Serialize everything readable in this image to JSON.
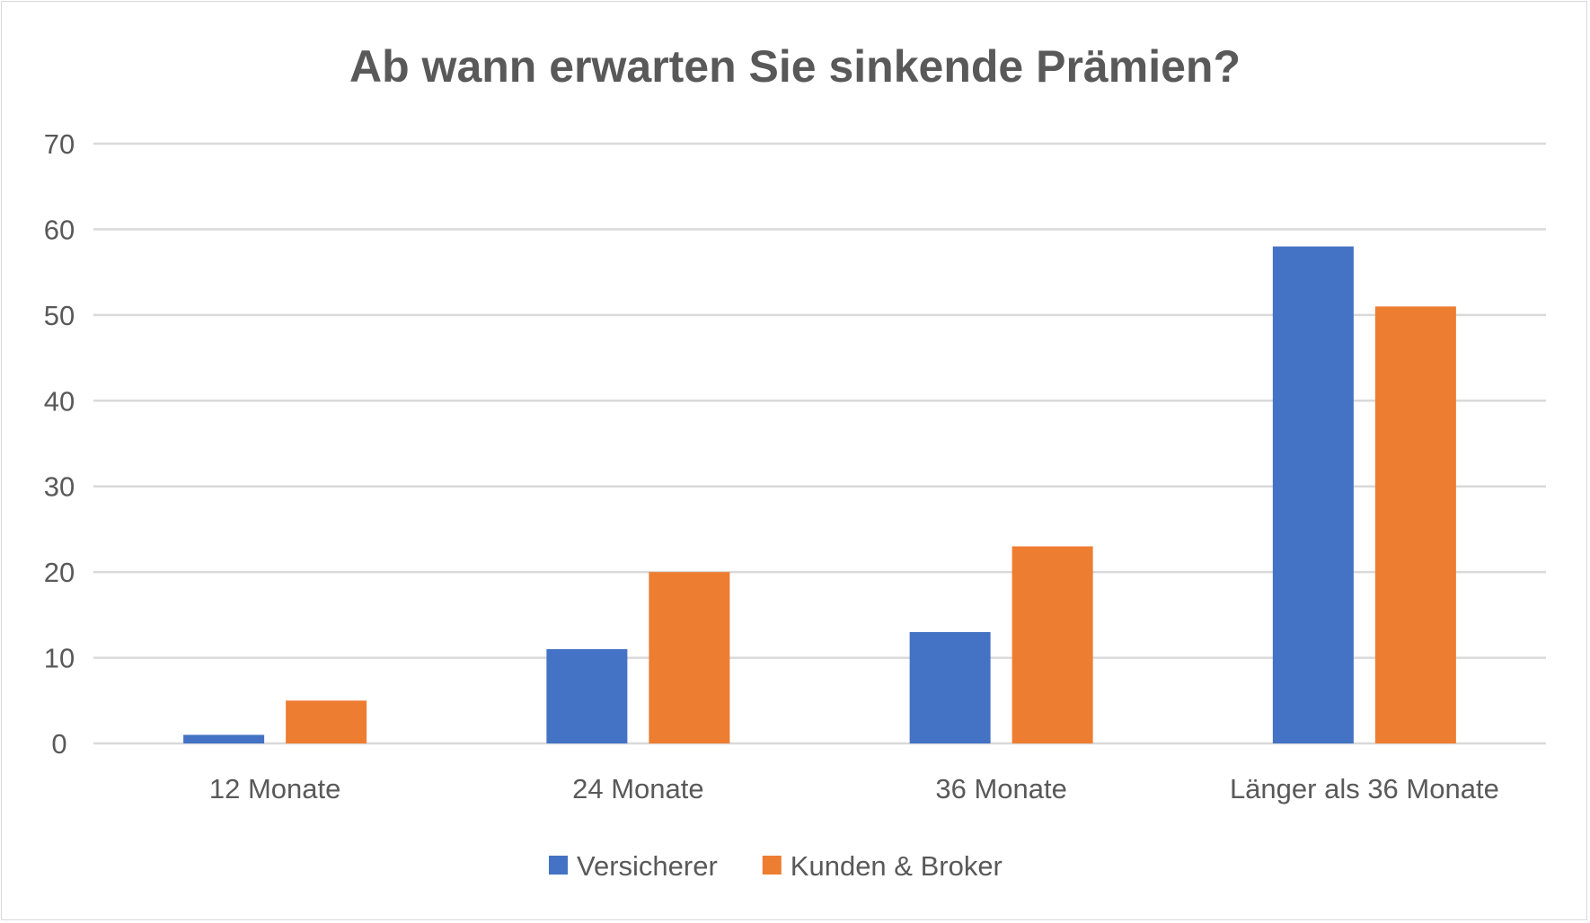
{
  "chart_data": {
    "type": "bar",
    "title": "Ab wann erwarten Sie sinkende Prämien?",
    "xlabel": "",
    "ylabel": "",
    "categories": [
      "12 Monate",
      "24 Monate",
      "36 Monate",
      "Länger als 36 Monate"
    ],
    "series": [
      {
        "name": "Versicherer",
        "values": [
          1,
          11,
          13,
          58
        ],
        "color": "#4472C4"
      },
      {
        "name": "Kunden & Broker",
        "values": [
          5,
          20,
          23,
          51
        ],
        "color": "#ED7D31"
      }
    ],
    "ylim": [
      0,
      70
    ],
    "yticks": [
      "0",
      "10",
      "20",
      "30",
      "40",
      "50",
      "60",
      "70"
    ],
    "grid": true,
    "legend": "bottom"
  }
}
